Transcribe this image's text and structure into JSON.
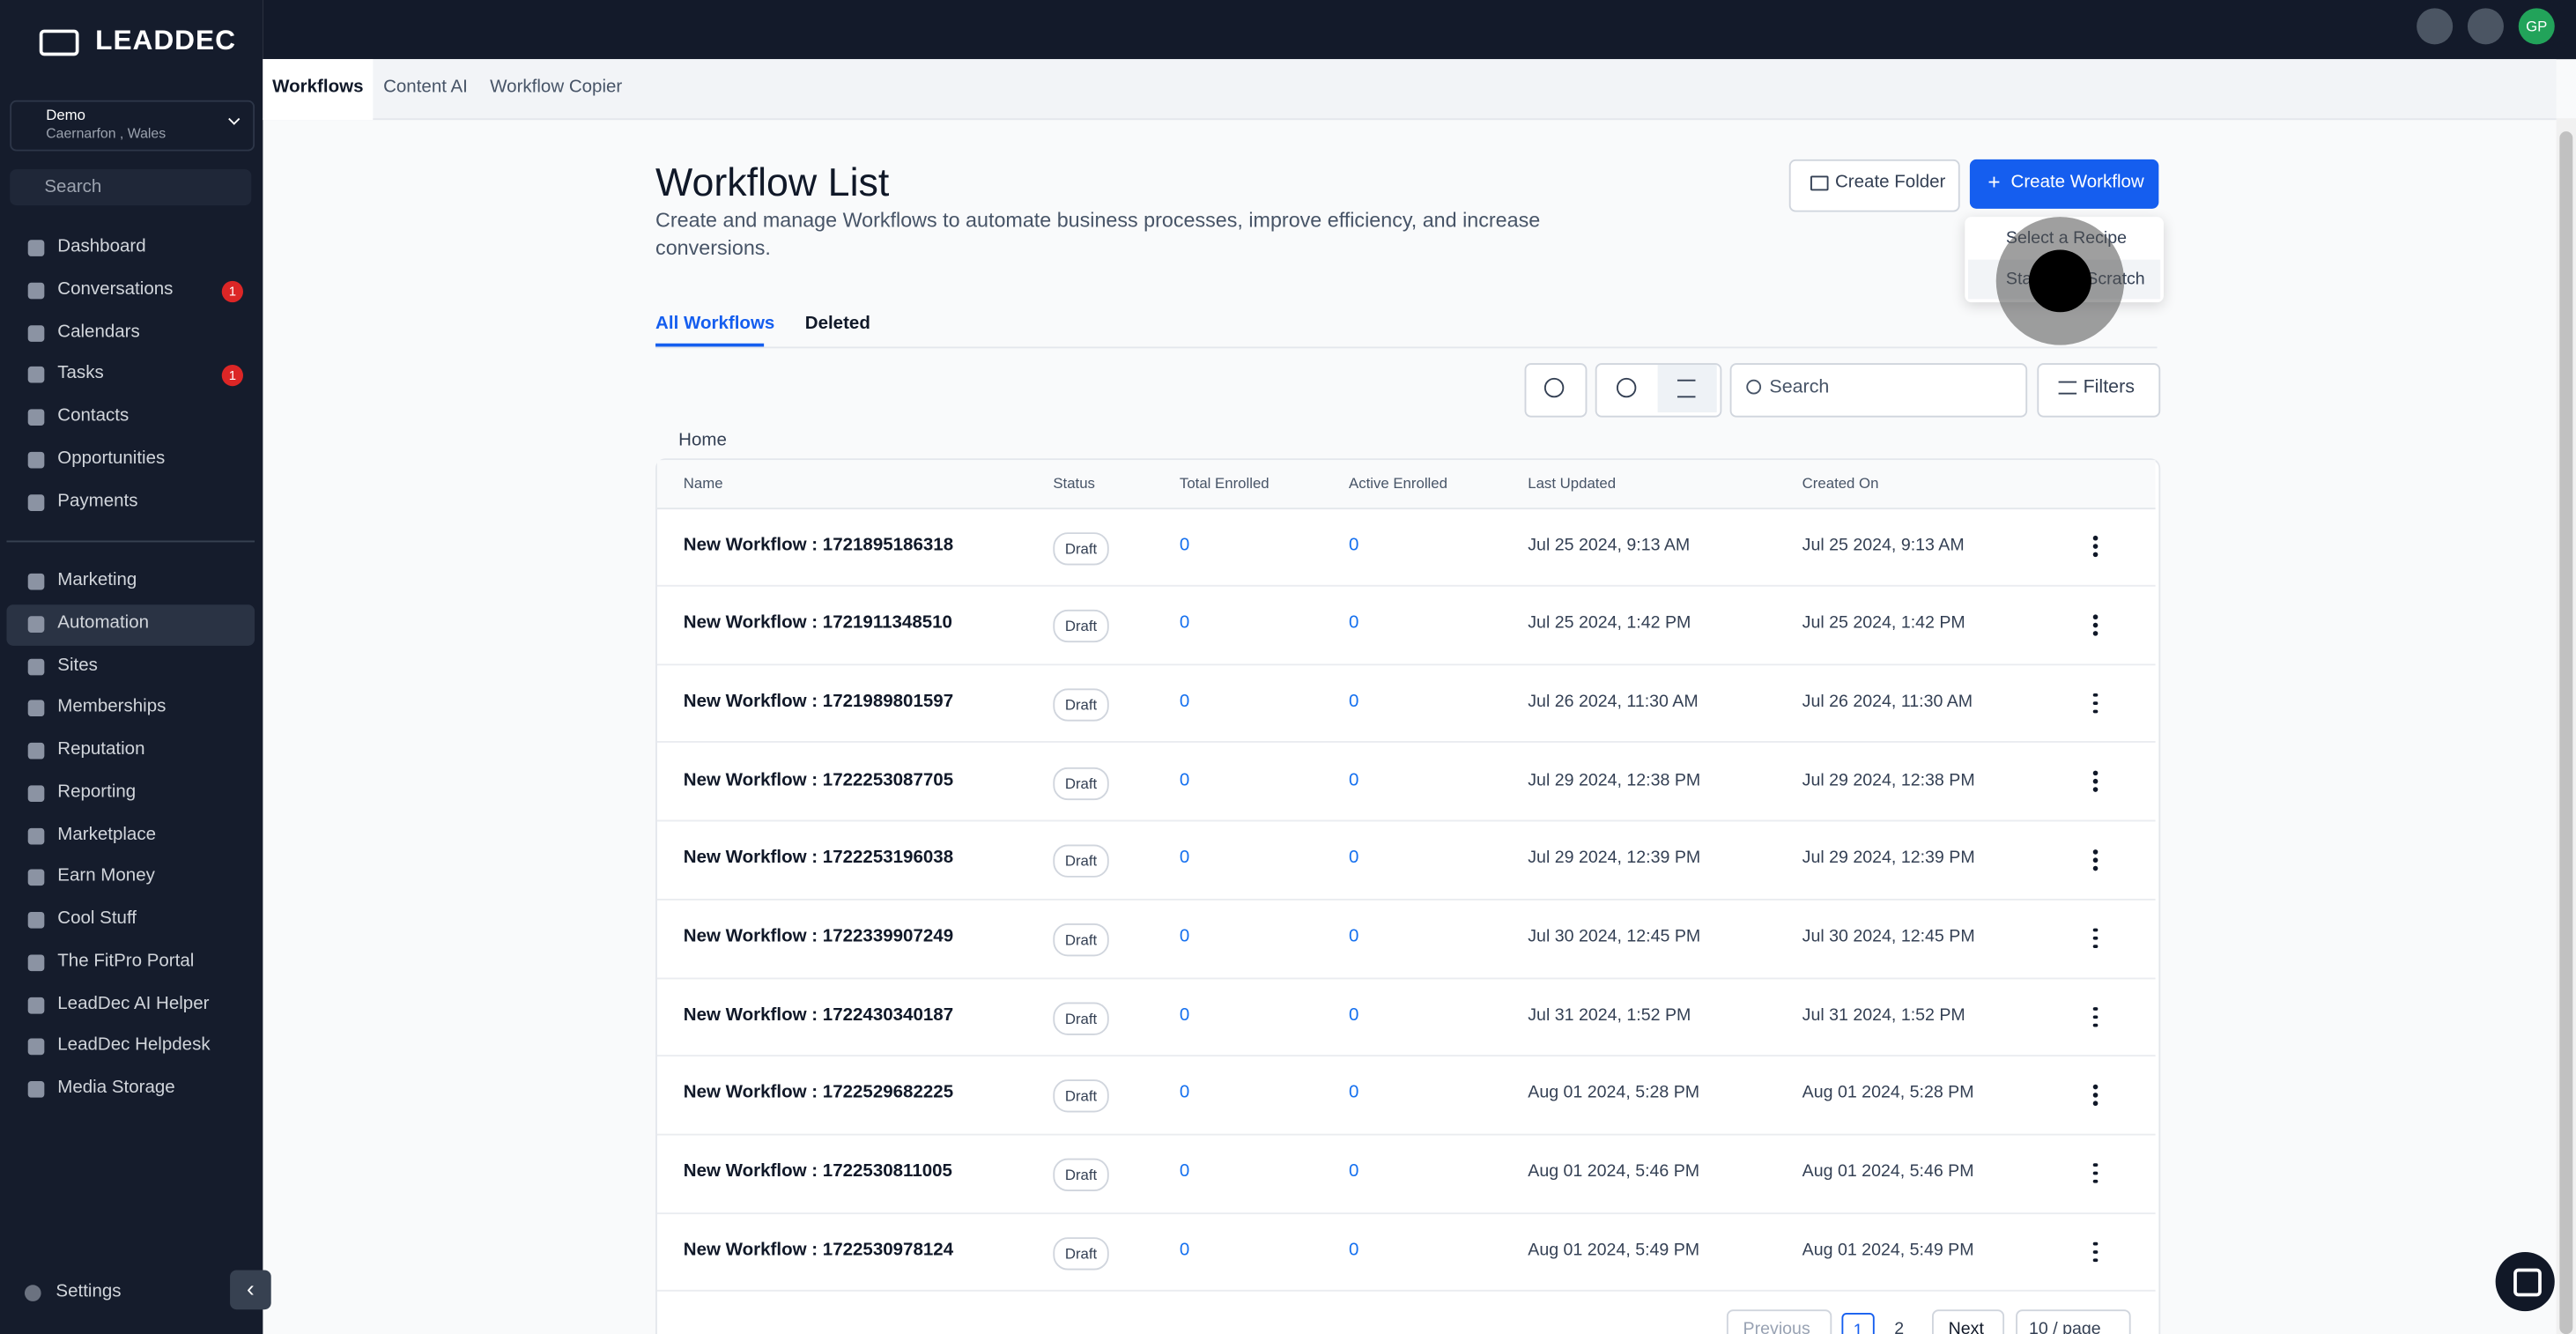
{
  "logo": "LEADDEC",
  "sidebar": {
    "location": {
      "name": "Demo",
      "address": "Caernarfon , Wales"
    },
    "search": "Search",
    "nav_top": [
      {
        "label": "Dashboard"
      },
      {
        "label": "Conversations",
        "badge": 1
      },
      {
        "label": "Calendars"
      },
      {
        "label": "Tasks",
        "badge": 1
      },
      {
        "label": "Contacts"
      },
      {
        "label": "Opportunities"
      },
      {
        "label": "Payments"
      }
    ],
    "nav_bottom": [
      {
        "label": "Marketing"
      },
      {
        "label": "Automation",
        "active": true
      },
      {
        "label": "Sites"
      },
      {
        "label": "Memberships"
      },
      {
        "label": "Reputation"
      },
      {
        "label": "Reporting"
      },
      {
        "label": "Marketplace"
      },
      {
        "label": "Earn Money"
      },
      {
        "label": "Cool Stuff"
      },
      {
        "label": "The FitPro Portal"
      },
      {
        "label": "LeadDec AI Helper"
      },
      {
        "label": "LeadDec Helpdesk"
      },
      {
        "label": "Media Storage"
      }
    ],
    "settings": "Settings"
  },
  "topbar": {
    "avatar": "GP"
  },
  "subnav": [
    "Workflows",
    "Content AI",
    "Workflow Copier"
  ],
  "header": {
    "title": "Workflow List",
    "description": "Create and manage Workflows to automate business processes, improve efficiency, and increase conversions.",
    "create_folder": "Create Folder",
    "create_workflow": "Create Workflow"
  },
  "dropdown": [
    "Select a Recipe",
    "Start from Scratch"
  ],
  "tabs": [
    "All Workflows",
    "Deleted"
  ],
  "toolbar": {
    "search": "Search",
    "filters": "Filters"
  },
  "breadcrumb": "Home",
  "table": {
    "columns": [
      "Name",
      "Status",
      "Total Enrolled",
      "Active Enrolled",
      "Last Updated",
      "Created On"
    ],
    "rows": [
      [
        "New Workflow : 1721895186318",
        "Draft",
        0,
        0,
        "Jul 25 2024, 9:13 AM",
        "Jul 25 2024, 9:13 AM"
      ],
      [
        "New Workflow : 1721911348510",
        "Draft",
        0,
        0,
        "Jul 25 2024, 1:42 PM",
        "Jul 25 2024, 1:42 PM"
      ],
      [
        "New Workflow : 1721989801597",
        "Draft",
        0,
        0,
        "Jul 26 2024, 11:30 AM",
        "Jul 26 2024, 11:30 AM"
      ],
      [
        "New Workflow : 1722253087705",
        "Draft",
        0,
        0,
        "Jul 29 2024, 12:38 PM",
        "Jul 29 2024, 12:38 PM"
      ],
      [
        "New Workflow : 1722253196038",
        "Draft",
        0,
        0,
        "Jul 29 2024, 12:39 PM",
        "Jul 29 2024, 12:39 PM"
      ],
      [
        "New Workflow : 1722339907249",
        "Draft",
        0,
        0,
        "Jul 30 2024, 12:45 PM",
        "Jul 30 2024, 12:45 PM"
      ],
      [
        "New Workflow : 1722430340187",
        "Draft",
        0,
        0,
        "Jul 31 2024, 1:52 PM",
        "Jul 31 2024, 1:52 PM"
      ],
      [
        "New Workflow : 1722529682225",
        "Draft",
        0,
        0,
        "Aug 01 2024, 5:28 PM",
        "Aug 01 2024, 5:28 PM"
      ],
      [
        "New Workflow : 1722530811005",
        "Draft",
        0,
        0,
        "Aug 01 2024, 5:46 PM",
        "Aug 01 2024, 5:46 PM"
      ],
      [
        "New Workflow : 1722530978124",
        "Draft",
        0,
        0,
        "Aug 01 2024, 5:49 PM",
        "Aug 01 2024, 5:49 PM"
      ]
    ]
  },
  "pagination": {
    "previous": "Previous",
    "pages": [
      1,
      2
    ],
    "next": "Next",
    "per_page": "10 / page"
  }
}
